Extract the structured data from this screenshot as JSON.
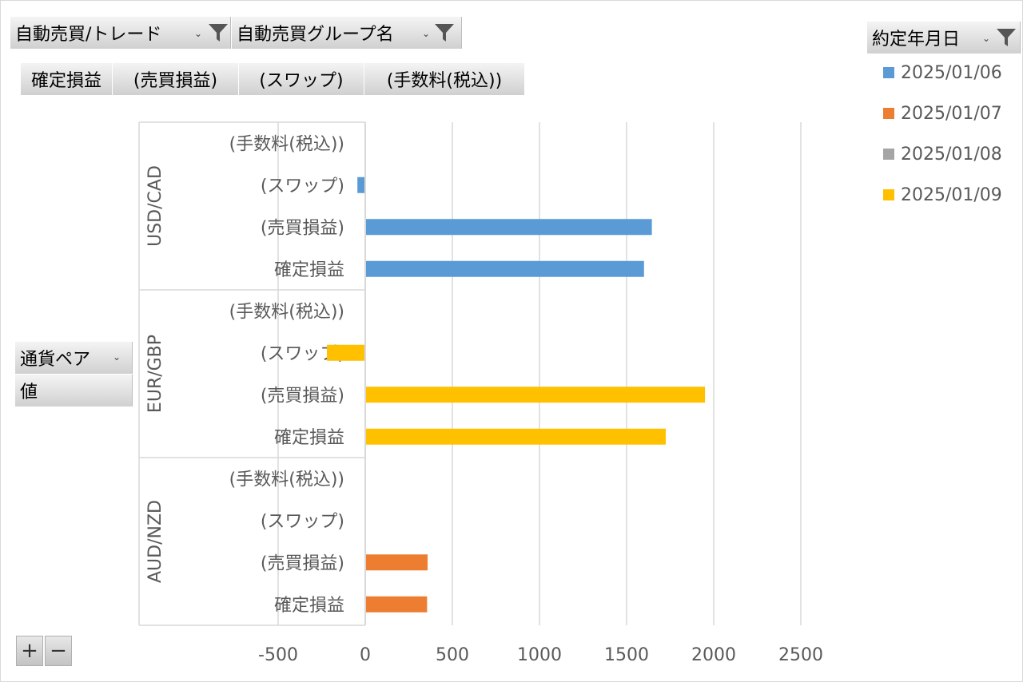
{
  "filters": {
    "top": [
      {
        "label": "自動売買/トレード"
      },
      {
        "label": "自動売買グループ名"
      }
    ],
    "legend_field": {
      "label": "約定年月日"
    },
    "row_field": {
      "label": "通貨ペア"
    },
    "values_field": {
      "label": "値"
    }
  },
  "value_buttons": [
    "確定損益",
    "(売買損益)",
    "(スワップ)",
    "(手数料(税込))"
  ],
  "zoom": {
    "plus": "+",
    "minus": "−"
  },
  "chart_data": {
    "type": "bar",
    "orientation": "horizontal",
    "axis": {
      "min": -500,
      "max": 2500,
      "ticks": [
        -500,
        0,
        500,
        1000,
        1500,
        2000,
        2500
      ],
      "tick_labels": [
        "-500",
        "0",
        "500",
        "1000",
        "1500",
        "2000",
        "2500"
      ],
      "grid": true
    },
    "legend": {
      "position": "right",
      "entries": [
        {
          "name": "2025/01/06",
          "color": "#5b9bd5"
        },
        {
          "name": "2025/01/07",
          "color": "#ed7d31"
        },
        {
          "name": "2025/01/08",
          "color": "#a5a5a5"
        },
        {
          "name": "2025/01/09",
          "color": "#ffc000"
        }
      ]
    },
    "groups": [
      {
        "name": "USD/CAD",
        "items": [
          {
            "label": "(手数料(税込))",
            "date": "2025/01/06",
            "value": 0
          },
          {
            "label": "(スワップ)",
            "date": "2025/01/06",
            "value": -45
          },
          {
            "label": "(売買損益)",
            "date": "2025/01/06",
            "value": 1645
          },
          {
            "label": "確定損益",
            "date": "2025/01/06",
            "value": 1600
          }
        ]
      },
      {
        "name": "EUR/GBP",
        "items": [
          {
            "label": "(手数料(税込))",
            "date": "2025/01/09",
            "value": 0
          },
          {
            "label": "(スワップ)",
            "date": "2025/01/09",
            "value": -220
          },
          {
            "label": "(売買損益)",
            "date": "2025/01/09",
            "value": 1950
          },
          {
            "label": "確定損益",
            "date": "2025/01/09",
            "value": 1725
          }
        ]
      },
      {
        "name": "AUD/NZD",
        "items": [
          {
            "label": "(手数料(税込))",
            "date": "2025/01/07",
            "value": 0
          },
          {
            "label": "(スワップ)",
            "date": "2025/01/07",
            "value": 0
          },
          {
            "label": "(売買損益)",
            "date": "2025/01/07",
            "value": 358
          },
          {
            "label": "確定損益",
            "date": "2025/01/07",
            "value": 355
          }
        ]
      }
    ]
  }
}
